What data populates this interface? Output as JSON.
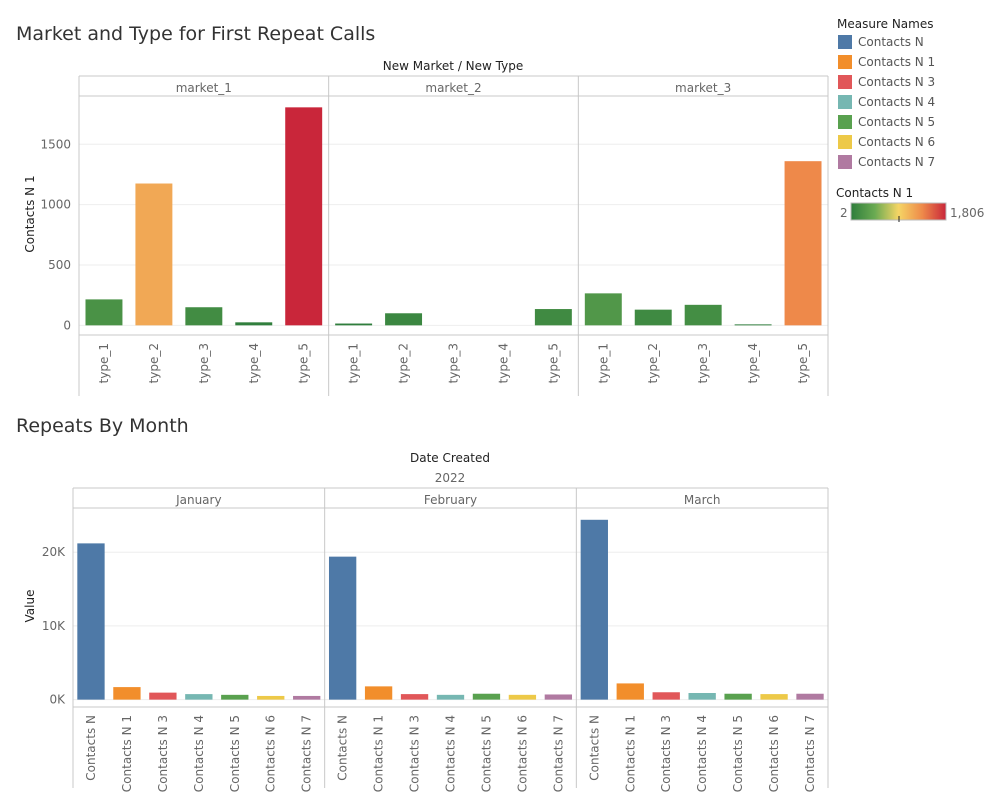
{
  "legend": {
    "title": "Measure Names",
    "items": [
      {
        "label": "Contacts N",
        "color": "#4e79a7"
      },
      {
        "label": "Contacts N 1",
        "color": "#f28e2b"
      },
      {
        "label": "Contacts N 3",
        "color": "#e15759"
      },
      {
        "label": "Contacts N 4",
        "color": "#76b7b2"
      },
      {
        "label": "Contacts N 5",
        "color": "#59a14f"
      },
      {
        "label": "Contacts N 6",
        "color": "#edc948"
      },
      {
        "label": "Contacts N 7",
        "color": "#b07aa1"
      }
    ],
    "color_scale": {
      "title": "Contacts N 1",
      "min_label": "2",
      "max_label": "1,806",
      "min": 2,
      "max": 1806,
      "colors": [
        "#2e7d3c",
        "#6aaa52",
        "#f5d565",
        "#ee8a4a",
        "#c9263a"
      ]
    }
  },
  "chart_data": [
    {
      "type": "bar",
      "title": "Market and Type for First Repeat Calls",
      "column_header": "New Market  /  New Type",
      "ylabel": "Contacts N 1",
      "ylim": [
        -80,
        1900
      ],
      "yticks": [
        0,
        500,
        1000,
        1500
      ],
      "ytick_labels": [
        "0",
        "500",
        "1000",
        "1500"
      ],
      "categories": [
        "type_1",
        "type_2",
        "type_3",
        "type_4",
        "type_5"
      ],
      "panes": [
        {
          "label": "market_1",
          "values": [
            215,
            1175,
            150,
            25,
            1806
          ]
        },
        {
          "label": "market_2",
          "values": [
            15,
            100,
            0,
            0,
            135
          ]
        },
        {
          "label": "market_3",
          "values": [
            265,
            130,
            170,
            8,
            1360
          ]
        }
      ]
    },
    {
      "type": "bar",
      "title": "Repeats By Month",
      "column_header": "Date Created",
      "year_label": "2022",
      "ylabel": "Value",
      "ylim": [
        -1000,
        26000
      ],
      "yticks": [
        0,
        10000,
        20000
      ],
      "ytick_labels": [
        "0K",
        "10K",
        "20K"
      ],
      "categories": [
        "Contacts N",
        "Contacts N 1",
        "Contacts N 3",
        "Contacts N 4",
        "Contacts N 5",
        "Contacts N 6",
        "Contacts N 7"
      ],
      "panes": [
        {
          "label": "January",
          "values": [
            21200,
            1700,
            950,
            750,
            650,
            500,
            500
          ]
        },
        {
          "label": "February",
          "values": [
            19400,
            1800,
            750,
            650,
            800,
            650,
            700
          ]
        },
        {
          "label": "March",
          "values": [
            24400,
            2200,
            1000,
            900,
            800,
            750,
            800
          ]
        }
      ]
    }
  ]
}
